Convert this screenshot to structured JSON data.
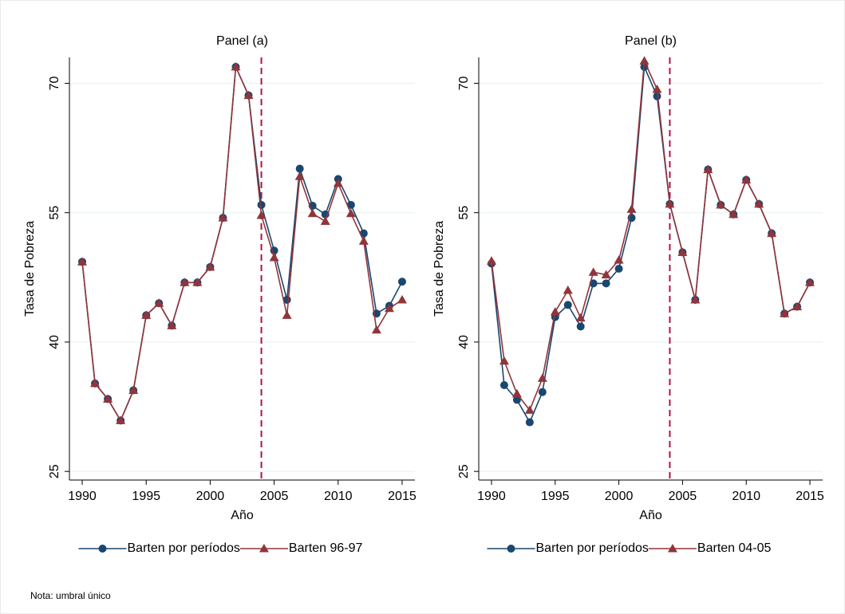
{
  "chart_data": [
    {
      "type": "line",
      "title": "Panel (a)",
      "xlabel": "Año",
      "ylabel": "Tasa de Pobreza",
      "x": [
        1990,
        1991,
        1992,
        1993,
        1994,
        1995,
        1996,
        1997,
        1998,
        1999,
        2000,
        2001,
        2002,
        2003,
        2004,
        2005,
        2006,
        2007,
        2008,
        2009,
        2010,
        2011,
        2012,
        2013,
        2014,
        2015
      ],
      "xlim": [
        1989,
        2016
      ],
      "xticks": [
        1990,
        1995,
        2000,
        2005,
        2010,
        2015
      ],
      "ylim": [
        24,
        73
      ],
      "yticks": [
        25,
        40,
        55,
        70
      ],
      "grid": true,
      "vline": 2004,
      "legend": "bottom",
      "series": [
        {
          "name": "Barten por períodos",
          "color": "#1a476f",
          "marker": "circle",
          "values": [
            49.3,
            35.2,
            33.4,
            30.9,
            34.4,
            43.1,
            44.5,
            41.9,
            46.9,
            46.9,
            48.7,
            54.4,
            71.9,
            68.6,
            55.9,
            50.6,
            44.9,
            60.1,
            55.8,
            54.8,
            58.9,
            55.9,
            52.6,
            43.3,
            44.2,
            47.0
          ]
        },
        {
          "name": "Barten 96-97",
          "color": "#90353b",
          "marker": "triangle",
          "values": [
            49.3,
            35.2,
            33.4,
            30.9,
            34.4,
            43.1,
            44.5,
            41.9,
            46.9,
            46.9,
            48.7,
            54.4,
            71.9,
            68.6,
            54.7,
            49.8,
            43.1,
            59.2,
            54.9,
            54.0,
            58.4,
            54.9,
            51.7,
            41.4,
            43.9,
            44.9
          ]
        }
      ]
    },
    {
      "type": "line",
      "title": "Panel (b)",
      "xlabel": "Año",
      "ylabel": "Tasa de Pobreza",
      "x": [
        1990,
        1991,
        1992,
        1993,
        1994,
        1995,
        1996,
        1997,
        1998,
        1999,
        2000,
        2001,
        2002,
        2003,
        2004,
        2005,
        2006,
        2007,
        2008,
        2009,
        2010,
        2011,
        2012,
        2013,
        2014,
        2015
      ],
      "xlim": [
        1989,
        2016
      ],
      "xticks": [
        1990,
        1995,
        2000,
        2005,
        2010,
        2015
      ],
      "ylim": [
        24,
        73
      ],
      "yticks": [
        25,
        40,
        55,
        70
      ],
      "grid": true,
      "vline": 2004,
      "legend": "bottom",
      "series": [
        {
          "name": "Barten por períodos",
          "color": "#1a476f",
          "marker": "circle",
          "values": [
            49.1,
            35.0,
            33.3,
            30.7,
            34.2,
            42.9,
            44.3,
            41.8,
            46.8,
            46.8,
            48.5,
            54.4,
            71.9,
            68.5,
            56.0,
            50.4,
            44.9,
            60.0,
            55.9,
            54.8,
            58.8,
            56.0,
            52.6,
            43.3,
            44.1,
            46.9
          ]
        },
        {
          "name": "Barten 04-05",
          "color": "#90353b",
          "marker": "triangle",
          "values": [
            49.4,
            37.8,
            34.0,
            32.1,
            35.8,
            43.5,
            46.0,
            42.8,
            48.1,
            47.8,
            49.5,
            55.4,
            72.6,
            69.3,
            56.0,
            50.4,
            44.9,
            60.0,
            55.9,
            54.8,
            58.8,
            56.0,
            52.6,
            43.3,
            44.1,
            46.9
          ]
        }
      ]
    }
  ],
  "note": "Nota: umbral único"
}
